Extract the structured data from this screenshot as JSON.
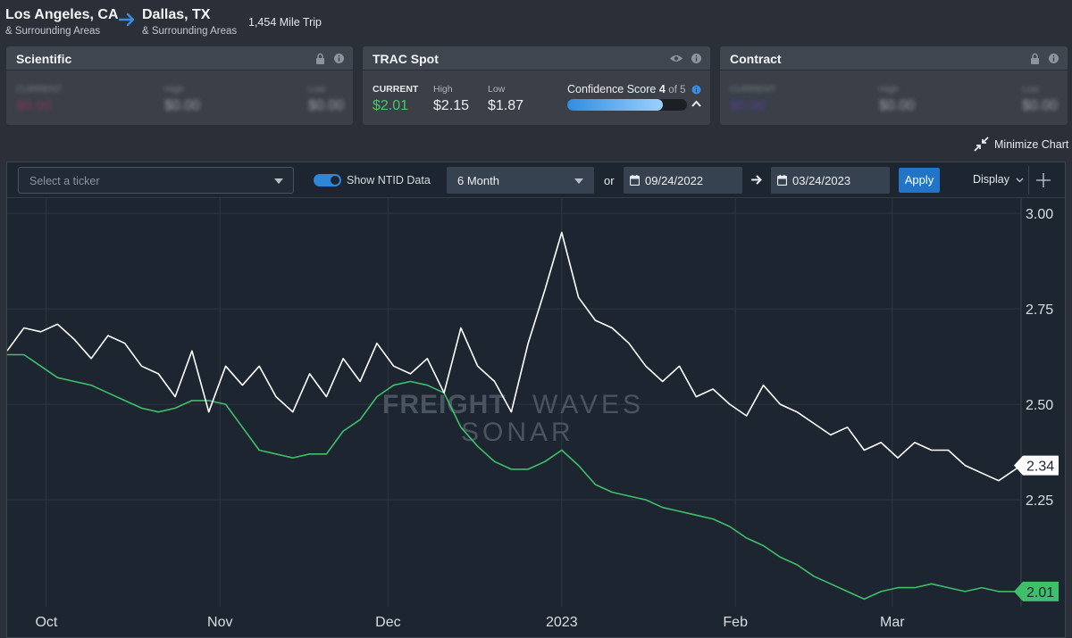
{
  "route": {
    "origin_city": "Los Angeles, CA",
    "origin_sub": "& Surrounding Areas",
    "dest_city": "Dallas, TX",
    "dest_sub": "& Surrounding Areas",
    "trip": "1,454 Mile Trip"
  },
  "cards": {
    "scientific": {
      "title": "Scientific",
      "current_label": "CURRENT",
      "current": "$0.00",
      "high_label": "High",
      "high": "$0.00",
      "low_label": "Low",
      "low": "$0.00"
    },
    "trac": {
      "title": "TRAC Spot",
      "current_label": "CURRENT",
      "current": "$2.01",
      "high_label": "High",
      "high": "$2.15",
      "low_label": "Low",
      "low": "$1.87",
      "confidence_label": "Confidence Score",
      "confidence_score": "4",
      "confidence_of": "of 5",
      "confidence_fraction": 0.8
    },
    "contract": {
      "title": "Contract",
      "current_label": "CURRENT",
      "current": "$0.00",
      "high_label": "High",
      "high": "$0.00",
      "low_label": "Low",
      "low": "$0.00"
    }
  },
  "minimize_label": "Minimize Chart",
  "toolbar": {
    "ticker_placeholder": "Select a ticker",
    "ntid_label": "Show NTID Data",
    "range": "6 Month",
    "or": "or",
    "start_date": "09/24/2022",
    "end_date": "03/24/2023",
    "apply": "Apply",
    "display": "Display"
  },
  "watermark": {
    "line1a": "FREIGHT",
    "line1b": "WAVES",
    "line2": "SONAR"
  },
  "colors": {
    "white_series": "#ffffff",
    "green_series": "#3fbf6a",
    "accent": "#2174c6"
  },
  "chart_data": {
    "type": "line",
    "x_ticks": [
      "Oct",
      "Nov",
      "Dec",
      "2023",
      "Feb",
      "Mar"
    ],
    "y_ticks": [
      "3.00",
      "2.75",
      "2.50",
      "2.25"
    ],
    "ylim": [
      1.97,
      3.04
    ],
    "grid": true,
    "series": [
      {
        "name": "",
        "color": "#ffffff",
        "last_label": "2.34",
        "x": [
          "2022-09-24",
          "2022-09-27",
          "2022-09-30",
          "2022-10-03",
          "2022-10-06",
          "2022-10-09",
          "2022-10-12",
          "2022-10-15",
          "2022-10-18",
          "2022-10-21",
          "2022-10-24",
          "2022-10-27",
          "2022-10-30",
          "2022-11-02",
          "2022-11-05",
          "2022-11-08",
          "2022-11-11",
          "2022-11-14",
          "2022-11-17",
          "2022-11-20",
          "2022-11-23",
          "2022-11-26",
          "2022-11-29",
          "2022-12-02",
          "2022-12-05",
          "2022-12-08",
          "2022-12-11",
          "2022-12-14",
          "2022-12-17",
          "2022-12-20",
          "2022-12-23",
          "2022-12-26",
          "2022-12-29",
          "2023-01-01",
          "2023-01-04",
          "2023-01-07",
          "2023-01-10",
          "2023-01-13",
          "2023-01-16",
          "2023-01-19",
          "2023-01-22",
          "2023-01-25",
          "2023-01-28",
          "2023-01-31",
          "2023-02-03",
          "2023-02-06",
          "2023-02-09",
          "2023-02-12",
          "2023-02-15",
          "2023-02-18",
          "2023-02-21",
          "2023-02-24",
          "2023-02-27",
          "2023-03-02",
          "2023-03-05",
          "2023-03-08",
          "2023-03-11",
          "2023-03-14",
          "2023-03-17",
          "2023-03-20",
          "2023-03-24"
        ],
        "values": [
          2.64,
          2.7,
          2.69,
          2.71,
          2.67,
          2.62,
          2.68,
          2.66,
          2.6,
          2.58,
          2.52,
          2.64,
          2.48,
          2.6,
          2.55,
          2.6,
          2.52,
          2.48,
          2.58,
          2.52,
          2.62,
          2.56,
          2.66,
          2.6,
          2.58,
          2.62,
          2.53,
          2.7,
          2.6,
          2.56,
          2.48,
          2.66,
          2.8,
          2.95,
          2.78,
          2.72,
          2.7,
          2.66,
          2.6,
          2.56,
          2.6,
          2.52,
          2.54,
          2.5,
          2.47,
          2.55,
          2.5,
          2.48,
          2.45,
          2.42,
          2.44,
          2.38,
          2.4,
          2.36,
          2.4,
          2.38,
          2.38,
          2.34,
          2.32,
          2.3,
          2.34
        ]
      },
      {
        "name": "",
        "color": "#3fbf6a",
        "last_label": "2.01",
        "x": [
          "2022-09-24",
          "2022-09-27",
          "2022-09-30",
          "2022-10-03",
          "2022-10-06",
          "2022-10-09",
          "2022-10-12",
          "2022-10-15",
          "2022-10-18",
          "2022-10-21",
          "2022-10-24",
          "2022-10-27",
          "2022-10-30",
          "2022-11-02",
          "2022-11-05",
          "2022-11-08",
          "2022-11-11",
          "2022-11-14",
          "2022-11-17",
          "2022-11-20",
          "2022-11-23",
          "2022-11-26",
          "2022-11-29",
          "2022-12-02",
          "2022-12-05",
          "2022-12-08",
          "2022-12-11",
          "2022-12-14",
          "2022-12-17",
          "2022-12-20",
          "2022-12-23",
          "2022-12-26",
          "2022-12-29",
          "2023-01-01",
          "2023-01-04",
          "2023-01-07",
          "2023-01-10",
          "2023-01-13",
          "2023-01-16",
          "2023-01-19",
          "2023-01-22",
          "2023-01-25",
          "2023-01-28",
          "2023-01-31",
          "2023-02-03",
          "2023-02-06",
          "2023-02-09",
          "2023-02-12",
          "2023-02-15",
          "2023-02-18",
          "2023-02-21",
          "2023-02-24",
          "2023-02-27",
          "2023-03-02",
          "2023-03-05",
          "2023-03-08",
          "2023-03-11",
          "2023-03-14",
          "2023-03-17",
          "2023-03-20",
          "2023-03-24"
        ],
        "values": [
          2.63,
          2.63,
          2.6,
          2.57,
          2.56,
          2.55,
          2.53,
          2.51,
          2.49,
          2.48,
          2.49,
          2.51,
          2.51,
          2.5,
          2.44,
          2.38,
          2.37,
          2.36,
          2.37,
          2.37,
          2.43,
          2.46,
          2.52,
          2.55,
          2.56,
          2.55,
          2.53,
          2.44,
          2.39,
          2.35,
          2.33,
          2.33,
          2.35,
          2.38,
          2.34,
          2.29,
          2.27,
          2.26,
          2.25,
          2.23,
          2.22,
          2.21,
          2.2,
          2.18,
          2.15,
          2.13,
          2.1,
          2.08,
          2.05,
          2.03,
          2.01,
          1.99,
          2.01,
          2.02,
          2.02,
          2.03,
          2.02,
          2.01,
          2.02,
          2.01,
          2.01
        ]
      }
    ]
  }
}
